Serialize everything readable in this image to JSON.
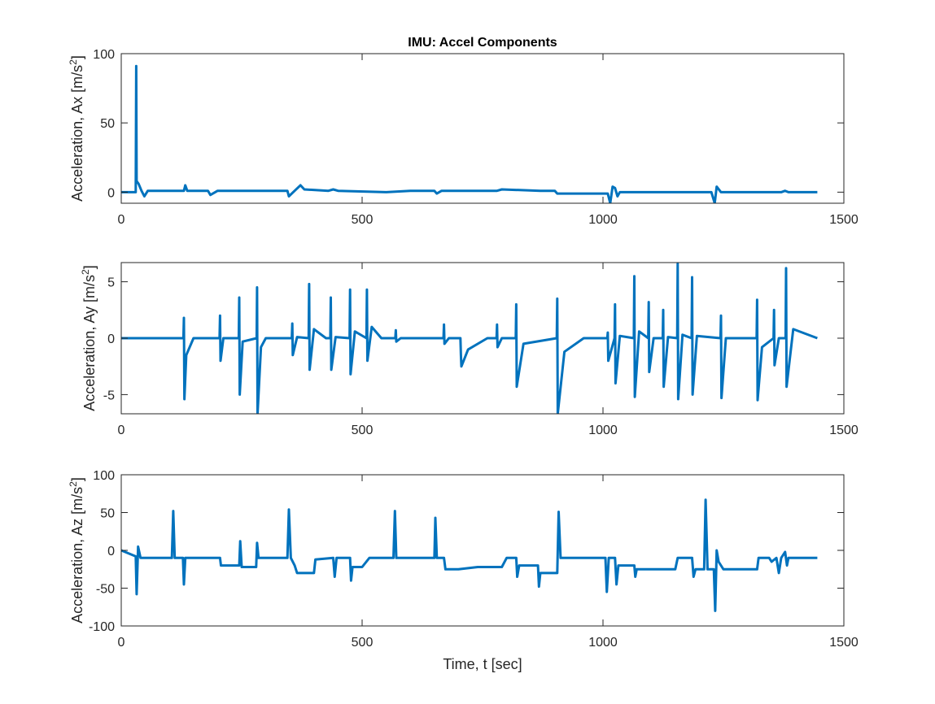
{
  "chart_data": [
    {
      "type": "line",
      "title": "IMU: Accel Components",
      "ylabel": [
        "Acceleration, Ax [m/s",
        "2",
        "]"
      ],
      "color": "#0072bd",
      "xlim": [
        0,
        1500
      ],
      "xticks": [
        0,
        500,
        1000,
        1500
      ],
      "ylim": [
        -8,
        100
      ],
      "yticks": [
        0,
        50,
        100
      ],
      "x": [
        0,
        30,
        31,
        32,
        36,
        42,
        48,
        55,
        130,
        133,
        137,
        180,
        185,
        195,
        200,
        345,
        348,
        360,
        372,
        380,
        430,
        440,
        450,
        550,
        600,
        650,
        655,
        665,
        780,
        790,
        870,
        900,
        905,
        915,
        1010,
        1015,
        1020,
        1025,
        1030,
        1035,
        1100,
        1225,
        1232,
        1236,
        1245,
        1370,
        1378,
        1385,
        1445
      ],
      "values": [
        0,
        0,
        91,
        8,
        6,
        1,
        -3,
        1,
        1,
        5,
        1,
        1,
        -2,
        0,
        1,
        1,
        -3,
        1,
        5,
        2,
        1,
        2,
        1,
        0,
        1,
        1,
        -1,
        1,
        1,
        2,
        1,
        1,
        -1,
        -1,
        -1,
        -8,
        4,
        3,
        -3,
        0,
        0,
        0,
        -8,
        4,
        0,
        0,
        1,
        0,
        0
      ]
    },
    {
      "type": "line",
      "ylabel": [
        "Acceleration, Ay [m/s",
        "2",
        "]"
      ],
      "color": "#0072bd",
      "xlim": [
        0,
        1500
      ],
      "xticks": [
        0,
        500,
        1000,
        1500
      ],
      "ylim": [
        -6.7,
        6.7
      ],
      "yticks": [
        -5,
        0,
        5
      ],
      "x": [
        0,
        129,
        130,
        131,
        135,
        150,
        204,
        205,
        206,
        212,
        244,
        245,
        246,
        252,
        281,
        282,
        283,
        290,
        300,
        354,
        355,
        356,
        365,
        389,
        390,
        391,
        400,
        425,
        434,
        435,
        436,
        445,
        474,
        475,
        476,
        485,
        509,
        510,
        511,
        520,
        540,
        569,
        570,
        571,
        580,
        669,
        670,
        671,
        680,
        704,
        705,
        706,
        720,
        760,
        779,
        780,
        781,
        790,
        819,
        820,
        821,
        835,
        904,
        905,
        906,
        920,
        960,
        1009,
        1010,
        1011,
        1024,
        1025,
        1026,
        1035,
        1064,
        1065,
        1066,
        1075,
        1094,
        1095,
        1096,
        1105,
        1124,
        1125,
        1126,
        1135,
        1154,
        1155,
        1156,
        1165,
        1184,
        1185,
        1186,
        1195,
        1244,
        1245,
        1246,
        1255,
        1319,
        1320,
        1321,
        1330,
        1354,
        1355,
        1356,
        1365,
        1379,
        1380,
        1381,
        1395,
        1445
      ],
      "values": [
        0,
        0,
        1.8,
        -5.4,
        -1.5,
        0,
        0,
        2,
        -2,
        0,
        0,
        3.6,
        -5,
        -0.3,
        0,
        4.5,
        -6.7,
        -0.8,
        0,
        0,
        1.3,
        -1.5,
        0.1,
        0,
        4.8,
        -2.8,
        0.8,
        0,
        0,
        3.6,
        -2.8,
        0.1,
        0,
        4.3,
        -3.2,
        0.6,
        0,
        4.3,
        -2,
        1,
        0,
        0,
        0.7,
        -0.3,
        0,
        0,
        1.2,
        -0.5,
        0,
        0,
        -1.5,
        -2.5,
        -1,
        0,
        0,
        1.2,
        -0.8,
        0,
        0,
        3,
        -4.3,
        -0.5,
        0,
        3.5,
        -6.7,
        -1.2,
        0,
        0,
        0.5,
        -2,
        0,
        3,
        -4,
        0.2,
        0,
        5.5,
        -5.2,
        0.6,
        0,
        3.2,
        -3,
        0,
        0,
        2.5,
        -4.3,
        0.1,
        0,
        6.6,
        -5.4,
        0.3,
        0,
        5.4,
        -5,
        0.2,
        0,
        2,
        -5.3,
        0,
        0,
        3.4,
        -5.5,
        -0.8,
        0,
        2.5,
        -2.4,
        0,
        0,
        6.2,
        -4.3,
        0.8,
        0
      ]
    },
    {
      "type": "line",
      "ylabel": [
        "Acceleration, Az [m/s",
        "2",
        "]"
      ],
      "xlabel": "Time, t [sec]",
      "color": "#0072bd",
      "xlim": [
        0,
        1500
      ],
      "xticks": [
        0,
        500,
        1000,
        1500
      ],
      "ylim": [
        -100,
        100
      ],
      "yticks": [
        -100,
        -50,
        0,
        50,
        100
      ],
      "x": [
        0,
        30,
        32,
        35,
        40,
        105,
        108,
        111,
        128,
        130,
        133,
        205,
        207,
        245,
        247,
        250,
        280,
        282,
        285,
        345,
        348,
        352,
        360,
        365,
        400,
        403,
        440,
        443,
        447,
        475,
        477,
        480,
        500,
        515,
        565,
        568,
        571,
        650,
        652,
        655,
        670,
        673,
        700,
        740,
        790,
        800,
        820,
        822,
        826,
        865,
        867,
        870,
        905,
        908,
        912,
        1005,
        1008,
        1012,
        1025,
        1028,
        1032,
        1065,
        1067,
        1070,
        1150,
        1155,
        1185,
        1188,
        1192,
        1210,
        1213,
        1217,
        1230,
        1233,
        1236,
        1240,
        1250,
        1320,
        1323,
        1345,
        1350,
        1360,
        1365,
        1370,
        1378,
        1382,
        1385,
        1445
      ],
      "values": [
        0,
        -8,
        -58,
        5,
        -10,
        -10,
        52,
        -10,
        -10,
        -45,
        -10,
        -10,
        -20,
        -20,
        12,
        -22,
        -22,
        10,
        -10,
        -10,
        54,
        -10,
        -20,
        -30,
        -30,
        -12,
        -10,
        -35,
        -10,
        -10,
        -40,
        -22,
        -22,
        -10,
        -10,
        52,
        -10,
        -10,
        43,
        -10,
        -10,
        -25,
        -25,
        -22,
        -22,
        -10,
        -10,
        -35,
        -20,
        -20,
        -48,
        -30,
        -30,
        51,
        -10,
        -10,
        -55,
        -10,
        -10,
        -45,
        -20,
        -20,
        -35,
        -25,
        -25,
        -10,
        -10,
        -35,
        -25,
        -25,
        67,
        -25,
        -25,
        -80,
        0,
        -15,
        -25,
        -25,
        -10,
        -10,
        -15,
        -10,
        -30,
        -10,
        -2,
        -20,
        -10,
        -10
      ]
    }
  ]
}
